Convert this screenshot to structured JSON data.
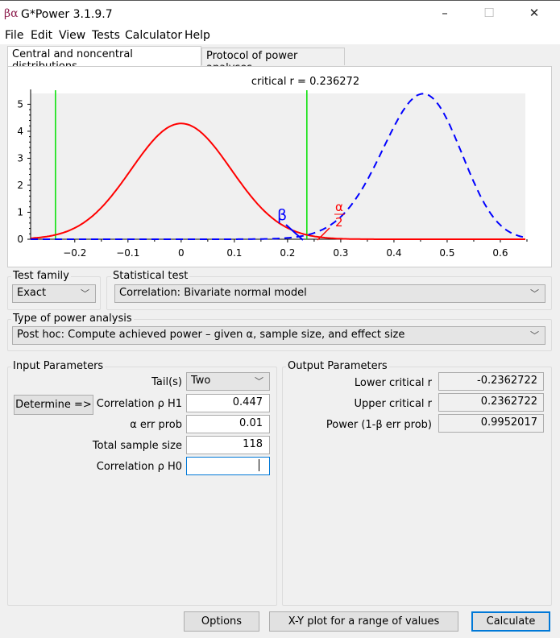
{
  "window": {
    "title": "G*Power 3.1.9.7",
    "icon": "beta-alpha-app-icon",
    "minimize": "–",
    "maximize": "☐",
    "close": "✕"
  },
  "menu": [
    "File",
    "Edit",
    "View",
    "Tests",
    "Calculator",
    "Help"
  ],
  "tabs": [
    {
      "label": "Central and noncentral distributions",
      "active": true
    },
    {
      "label": "Protocol of power analyses",
      "active": false
    }
  ],
  "chart_data": {
    "type": "line",
    "title": "critical r = 0.236272",
    "x_ticks": [
      "-0.2",
      "-0.1",
      "0",
      "0.1",
      "0.2",
      "0.3",
      "0.4",
      "0.5",
      "0.6"
    ],
    "y_ticks": [
      "0",
      "1",
      "2",
      "3",
      "4",
      "5"
    ],
    "xlim": [
      -0.283,
      0.647
    ],
    "ylim": [
      0,
      5.4
    ],
    "series": [
      {
        "role": "H0 central distribution",
        "rho": 0,
        "n": 118,
        "style": "solid",
        "color": "#ff0000"
      },
      {
        "role": "H1 noncentral distribution",
        "rho": 0.447,
        "n": 118,
        "style": "dashed",
        "color": "#0000ff"
      }
    ],
    "critical_lines": [
      -0.236272,
      0.236272
    ],
    "critical_color": "#00e000",
    "annotations": {
      "beta": "β",
      "alpha_num": "α",
      "alpha_den": "2"
    },
    "background": "#f0f0f0"
  },
  "test_family": {
    "label": "Test family",
    "value": "Exact"
  },
  "statistical_test": {
    "label": "Statistical test",
    "value": "Correlation: Bivariate normal model"
  },
  "power_analysis": {
    "label": "Type of power analysis",
    "value": "Post hoc: Compute achieved power – given α, sample size, and effect size"
  },
  "input": {
    "title": "Input Parameters",
    "determine": "Determine =>",
    "tails_label": "Tail(s)",
    "tails_value": "Two",
    "rho_h1_label": "Correlation ρ H1",
    "rho_h1": "0.447",
    "alpha_label": "α err prob",
    "alpha": "0.01",
    "n_label": "Total sample size",
    "n": "118",
    "rho_h0_label": "Correlation ρ H0",
    "rho_h0": ""
  },
  "output": {
    "title": "Output Parameters",
    "lower_label": "Lower critical r",
    "lower": "-0.2362722",
    "upper_label": "Upper critical r",
    "upper": "0.2362722",
    "power_label": "Power (1-β err prob)",
    "power": "0.9952017"
  },
  "buttons": {
    "options": "Options",
    "xy": "X-Y plot for a range of values",
    "calculate": "Calculate"
  }
}
